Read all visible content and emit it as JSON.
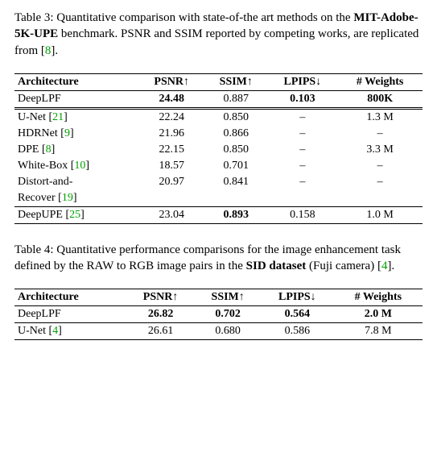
{
  "table3": {
    "caption_prefix": "Table 3: Quantitative comparison with state-of-the art methods on the ",
    "caption_bold": "MIT-Adobe-5K-UPE",
    "caption_mid": " benchmark. PSNR and SSIM reported by competing works, are replicated from [",
    "caption_cite": "8",
    "caption_suffix": "].",
    "columns": {
      "arch": "Architecture",
      "psnr": "PSNR",
      "ssim": "SSIM",
      "lpips": "LPIPS",
      "weights": "# Weights"
    },
    "arrows": {
      "up": "↑",
      "down": "↓"
    },
    "rows": [
      {
        "arch": "DeepLPF",
        "cite": "",
        "psnr": "24.48",
        "psnr_b": true,
        "ssim": "0.887",
        "ssim_b": false,
        "lpips": "0.103",
        "lpips_b": true,
        "weights": "800K",
        "weights_b": true
      },
      {
        "arch": "U-Net [",
        "cite": "21",
        "arch_suf": "]",
        "psnr": "22.24",
        "ssim": "0.850",
        "lpips": "–",
        "weights": "1.3 M"
      },
      {
        "arch": "HDRNet [",
        "cite": "9",
        "arch_suf": "]",
        "psnr": "21.96",
        "ssim": "0.866",
        "lpips": "–",
        "weights": "–"
      },
      {
        "arch": "DPE [",
        "cite": "8",
        "arch_suf": "]",
        "psnr": "22.15",
        "ssim": "0.850",
        "lpips": "–",
        "weights": "3.3 M"
      },
      {
        "arch": "White-Box [",
        "cite": "10",
        "arch_suf": "]",
        "psnr": "18.57",
        "ssim": "0.701",
        "lpips": "–",
        "weights": "–"
      },
      {
        "arch": "Distort-and-",
        "cite": "",
        "psnr": "20.97",
        "ssim": "0.841",
        "lpips": "–",
        "weights": "–"
      },
      {
        "arch": "Recover [",
        "cite": "19",
        "arch_suf": "]",
        "psnr": "",
        "ssim": "",
        "lpips": "",
        "weights": ""
      },
      {
        "arch": "DeepUPE [",
        "cite": "25",
        "arch_suf": "]",
        "psnr": "23.04",
        "ssim": "0.893",
        "ssim_b": true,
        "lpips": "0.158",
        "weights": "1.0 M"
      }
    ]
  },
  "table4": {
    "caption_prefix": "Table 4: Quantitative performance comparisons for the image enhancement task defined by the RAW to RGB image pairs in the ",
    "caption_bold": "SID dataset",
    "caption_mid": " (Fuji camera) [",
    "caption_cite": "4",
    "caption_suffix": "].",
    "columns": {
      "arch": "Architecture",
      "psnr": "PSNR",
      "ssim": "SSIM",
      "lpips": "LPIPS",
      "weights": "# Weights"
    },
    "arrows": {
      "up": "↑",
      "down": "↓"
    },
    "rows": [
      {
        "arch": "DeepLPF",
        "cite": "",
        "psnr": "26.82",
        "psnr_b": true,
        "ssim": "0.702",
        "ssim_b": true,
        "lpips": "0.564",
        "lpips_b": true,
        "weights": "2.0 M",
        "weights_b": true
      },
      {
        "arch": "U-Net [",
        "cite": "4",
        "arch_suf": "]",
        "psnr": "26.61",
        "ssim": "0.680",
        "lpips": "0.586",
        "weights": "7.8 M"
      }
    ]
  }
}
